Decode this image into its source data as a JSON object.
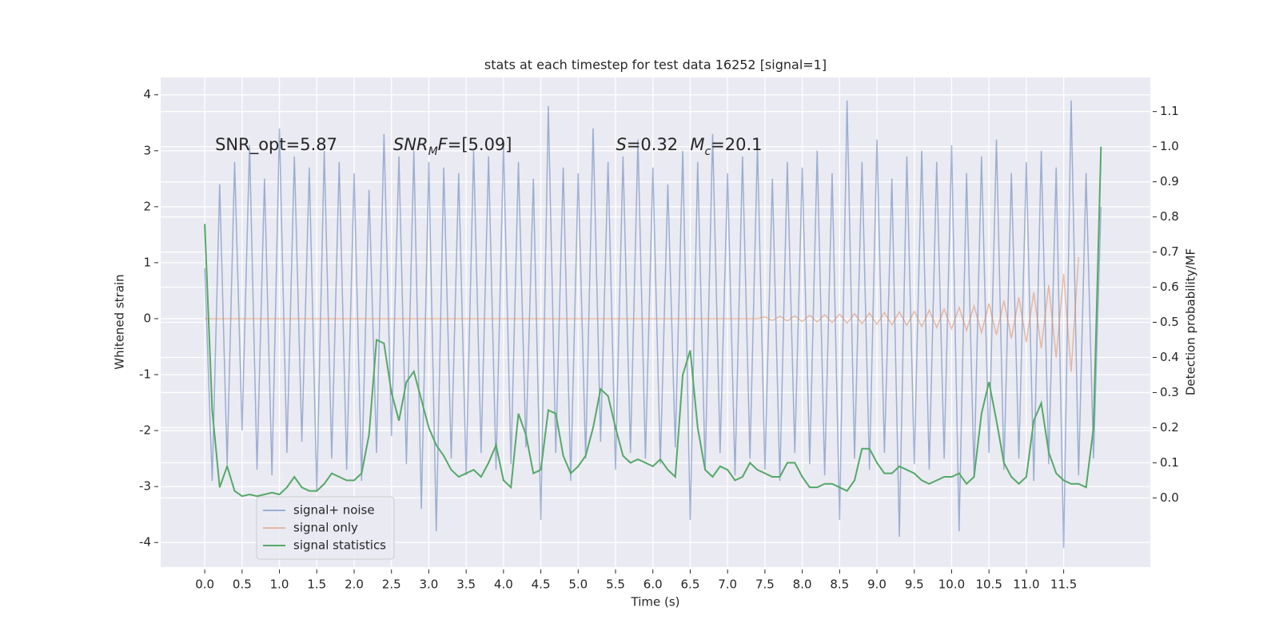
{
  "chart_data": {
    "type": "line",
    "title": "stats at each timestep for test data 16252 [signal=1]",
    "xlabel": "Time (s)",
    "ylabel": "Whitened strain",
    "y2label": "Detection probability/MF",
    "annotations": [
      [
        {
          "text": "SNR_opt=5.87",
          "italic": false,
          "sub": false
        }
      ],
      [
        {
          "text": "SNR",
          "italic": true,
          "sub": false
        },
        {
          "text": "M",
          "italic": true,
          "sub": true
        },
        {
          "text": "F",
          "italic": true,
          "sub": false
        },
        {
          "text": "=[5.09]",
          "italic": false,
          "sub": false
        }
      ],
      [
        {
          "text": "S",
          "italic": true,
          "sub": false
        },
        {
          "text": "=0.32",
          "italic": false,
          "sub": false
        }
      ],
      [
        {
          "text": "M",
          "italic": true,
          "sub": false
        },
        {
          "text": "c",
          "italic": true,
          "sub": true
        },
        {
          "text": "=20.1",
          "italic": false,
          "sub": false
        }
      ]
    ],
    "x": [
      0,
      0.1,
      0.2,
      0.3,
      0.4,
      0.5,
      0.6,
      0.7,
      0.8,
      0.9,
      1,
      1.1,
      1.2,
      1.3,
      1.4,
      1.5,
      1.6,
      1.7,
      1.8,
      1.9,
      2,
      2.1,
      2.2,
      2.3,
      2.4,
      2.5,
      2.6,
      2.7,
      2.8,
      2.9,
      3,
      3.1,
      3.2,
      3.3,
      3.4,
      3.5,
      3.6,
      3.7,
      3.8,
      3.9,
      4,
      4.1,
      4.2,
      4.3,
      4.4,
      4.5,
      4.6,
      4.7,
      4.8,
      4.9,
      5,
      5.1,
      5.2,
      5.3,
      5.4,
      5.5,
      5.6,
      5.7,
      5.8,
      5.9,
      6,
      6.1,
      6.2,
      6.3,
      6.4,
      6.5,
      6.6,
      6.7,
      6.8,
      6.9,
      7,
      7.1,
      7.2,
      7.3,
      7.4,
      7.5,
      7.6,
      7.7,
      7.8,
      7.9,
      8,
      8.1,
      8.2,
      8.3,
      8.4,
      8.5,
      8.6,
      8.7,
      8.8,
      8.9,
      9,
      9.1,
      9.2,
      9.3,
      9.4,
      9.5,
      9.6,
      9.7,
      9.8,
      9.9,
      10,
      10.1,
      10.2,
      10.3,
      10.4,
      10.5,
      10.6,
      10.7,
      10.8,
      10.9,
      11,
      11.1,
      11.2,
      11.3,
      11.4,
      11.5,
      11.6,
      11.7,
      11.8,
      11.9,
      12
    ],
    "series": [
      {
        "name": "signal+ noise",
        "color": "#4c72b0",
        "opacity": 0.5,
        "axis": "y",
        "values": [
          0.9,
          -2.9,
          2.4,
          -2.6,
          2.8,
          -2.0,
          3.1,
          -2.7,
          2.5,
          -2.8,
          3.4,
          -2.4,
          2.9,
          -2.2,
          2.7,
          -3.1,
          3.0,
          -2.5,
          2.8,
          -2.7,
          2.6,
          -2.9,
          2.3,
          -2.4,
          3.3,
          -2.1,
          2.9,
          -2.6,
          3.0,
          -3.4,
          2.8,
          -3.8,
          2.7,
          -2.5,
          2.6,
          -2.8,
          3.0,
          -2.4,
          2.9,
          -2.7,
          3.1,
          -2.6,
          2.8,
          -2.3,
          2.5,
          -3.6,
          3.8,
          -2.4,
          2.7,
          -2.9,
          2.6,
          -2.5,
          3.4,
          -2.2,
          2.8,
          -2.7,
          2.9,
          -2.4,
          3.2,
          -2.5,
          2.7,
          -2.6,
          2.4,
          -2.3,
          3.0,
          -3.6,
          2.8,
          -2.7,
          3.3,
          -2.4,
          2.6,
          -2.8,
          2.9,
          -2.5,
          3.1,
          -2.7,
          2.5,
          -2.9,
          2.8,
          -2.4,
          2.7,
          -2.6,
          3.0,
          -2.8,
          2.6,
          -3.6,
          3.9,
          -2.5,
          2.8,
          -2.7,
          3.2,
          -2.4,
          2.5,
          -3.9,
          2.9,
          -2.6,
          3.0,
          -2.7,
          2.8,
          -2.5,
          3.1,
          -3.8,
          2.6,
          -2.8,
          2.9,
          -2.4,
          3.2,
          -2.7,
          2.6,
          -2.5,
          2.8,
          -2.9,
          3.0,
          -2.6,
          2.7,
          -4.1,
          3.9,
          -2.8,
          2.6,
          -2.5,
          2.0
        ]
      },
      {
        "name": "signal only",
        "color": "#dd8452",
        "opacity": 0.5,
        "axis": "y",
        "values": [
          0,
          0,
          0,
          0,
          0,
          0,
          0,
          0,
          0,
          0,
          0,
          0,
          0,
          0,
          0,
          0,
          0,
          0,
          0,
          0,
          0,
          0,
          0,
          0,
          0,
          0,
          0,
          0,
          0,
          0,
          0,
          0,
          0,
          0,
          0,
          0,
          0,
          0,
          0,
          0,
          0,
          0,
          0,
          0,
          0,
          0,
          0,
          0,
          0,
          0,
          0,
          0,
          0,
          0,
          0,
          0,
          0,
          0,
          0,
          0,
          0,
          0,
          0,
          0,
          0,
          0,
          0,
          0,
          0,
          0,
          0,
          0,
          0,
          0,
          0,
          0.03,
          -0.03,
          0.04,
          -0.04,
          0.05,
          -0.05,
          0.06,
          -0.06,
          0.07,
          -0.07,
          0.08,
          -0.08,
          0.09,
          -0.09,
          0.1,
          -0.1,
          0.11,
          -0.11,
          0.12,
          -0.12,
          0.13,
          -0.14,
          0.15,
          -0.16,
          0.17,
          -0.18,
          0.2,
          -0.21,
          0.23,
          -0.25,
          0.27,
          -0.29,
          0.32,
          -0.35,
          0.38,
          -0.42,
          0.47,
          -0.53,
          0.6,
          -0.7,
          0.8,
          -0.95,
          1.1,
          null,
          null,
          null
        ]
      },
      {
        "name": "signal statistics",
        "color": "#55a868",
        "opacity": 1,
        "axis": "y2",
        "values": [
          0.78,
          0.25,
          0.03,
          0.09,
          0.02,
          0.005,
          0.01,
          0.005,
          0.01,
          0.015,
          0.01,
          0.03,
          0.06,
          0.03,
          0.02,
          0.02,
          0.04,
          0.07,
          0.06,
          0.05,
          0.05,
          0.07,
          0.18,
          0.45,
          0.44,
          0.3,
          0.22,
          0.33,
          0.36,
          0.28,
          0.2,
          0.15,
          0.12,
          0.08,
          0.06,
          0.07,
          0.08,
          0.06,
          0.1,
          0.15,
          0.05,
          0.03,
          0.24,
          0.18,
          0.07,
          0.08,
          0.25,
          0.24,
          0.12,
          0.07,
          0.09,
          0.12,
          0.2,
          0.31,
          0.29,
          0.2,
          0.12,
          0.1,
          0.11,
          0.1,
          0.09,
          0.11,
          0.08,
          0.06,
          0.35,
          0.42,
          0.2,
          0.08,
          0.06,
          0.09,
          0.08,
          0.05,
          0.06,
          0.1,
          0.08,
          0.07,
          0.06,
          0.06,
          0.1,
          0.1,
          0.06,
          0.03,
          0.03,
          0.04,
          0.04,
          0.03,
          0.02,
          0.05,
          0.14,
          0.14,
          0.1,
          0.07,
          0.07,
          0.09,
          0.08,
          0.07,
          0.05,
          0.04,
          0.05,
          0.06,
          0.06,
          0.07,
          0.04,
          0.06,
          0.24,
          0.33,
          0.22,
          0.1,
          0.06,
          0.04,
          0.06,
          0.22,
          0.27,
          0.13,
          0.07,
          0.05,
          0.04,
          0.04,
          0.03,
          0.2,
          1.0
        ]
      }
    ],
    "xlim": [
      -0.59,
      12.66
    ],
    "xticks": [
      {
        "value": 0,
        "label": "0.0"
      },
      0.5,
      {
        "value": 1,
        "label": "1.0"
      },
      1.5,
      {
        "value": 2,
        "label": "2.0"
      },
      2.5,
      {
        "value": 3,
        "label": "3.0"
      },
      3.5,
      {
        "value": 4,
        "label": "4.0"
      },
      4.5,
      {
        "value": 5,
        "label": "5.0"
      },
      5.5,
      {
        "value": 6,
        "label": "6.0"
      },
      6.5,
      {
        "value": 7,
        "label": "7.0"
      },
      7.5,
      {
        "value": 8,
        "label": "8.0"
      },
      8.5,
      {
        "value": 9,
        "label": "9.0"
      },
      9.5,
      {
        "value": 10,
        "label": "10.0"
      },
      10.5,
      {
        "value": 11,
        "label": "11.0"
      },
      11.5
    ],
    "ylim": [
      -4.44,
      4.31
    ],
    "yticks": [
      -4,
      -3,
      -2,
      -1,
      0,
      1,
      2,
      3,
      4
    ],
    "y2lim": [
      -0.197,
      1.197
    ],
    "y2ticks": [
      {
        "value": 0,
        "label": "0.0"
      },
      0.1,
      0.2,
      0.3,
      0.4,
      0.5,
      0.6,
      0.7,
      0.8,
      0.9,
      {
        "value": 1,
        "label": "1.0"
      },
      1.1
    ],
    "grid": true,
    "legend": "lower left"
  }
}
